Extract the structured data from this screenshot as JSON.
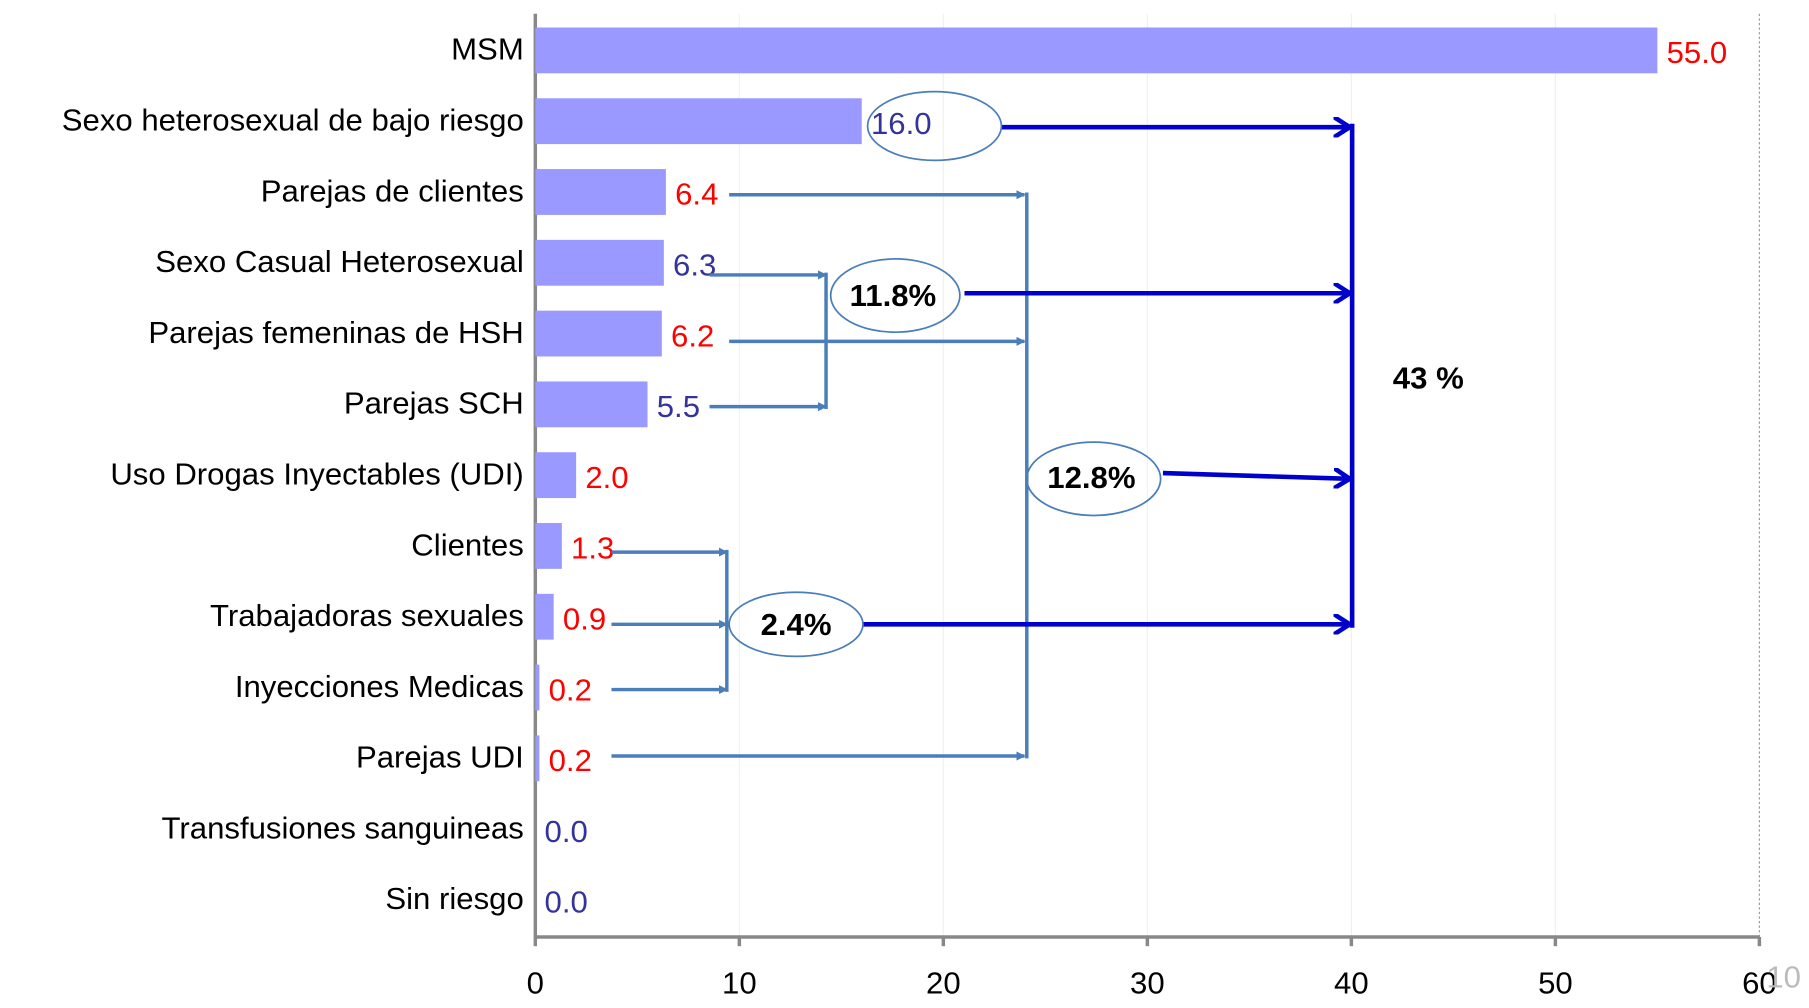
{
  "chart_data": {
    "type": "bar",
    "orientation": "horizontal",
    "categories": [
      "MSM",
      "Sexo heterosexual de bajo riesgo",
      "Parejas de clientes",
      "Sexo Casual Heterosexual",
      "Parejas femeninas de HSH",
      "Parejas SCH",
      "Uso Drogas Inyectables  (UDI)",
      "Clientes",
      "Trabajadoras sexuales",
      "Inyecciones Medicas",
      "Parejas UDI",
      "Transfusiones sanguineas",
      "Sin riesgo"
    ],
    "values": [
      55,
      16,
      6.4,
      6.3,
      6.2,
      5.5,
      2,
      1.3,
      0.9,
      0.2,
      0.2,
      0,
      0
    ],
    "value_labels": [
      "55.0",
      "16.0",
      "6.4",
      "6.3",
      "6.2",
      "5.5",
      "2.0",
      "1.3",
      "0.9",
      "0.2",
      "0.2",
      "0.0",
      "0.0"
    ],
    "value_label_colors": [
      "#ff0000",
      "#333399",
      "#ff0000",
      "#333399",
      "#ff0000",
      "#333399",
      "#ff0000",
      "#ff0000",
      "#ff0000",
      "#ff0000",
      "#ff0000",
      "#333399",
      "#333399"
    ],
    "color": "#9999ff",
    "xlim": [
      0,
      60
    ],
    "xticks": [
      0,
      10,
      20,
      30,
      40,
      50,
      60
    ],
    "grid": true,
    "annotations": {
      "group_a": "11.8%",
      "group_b": "12.8%",
      "group_c": "2.4%",
      "total": "43 %"
    },
    "slide_number": "10"
  }
}
